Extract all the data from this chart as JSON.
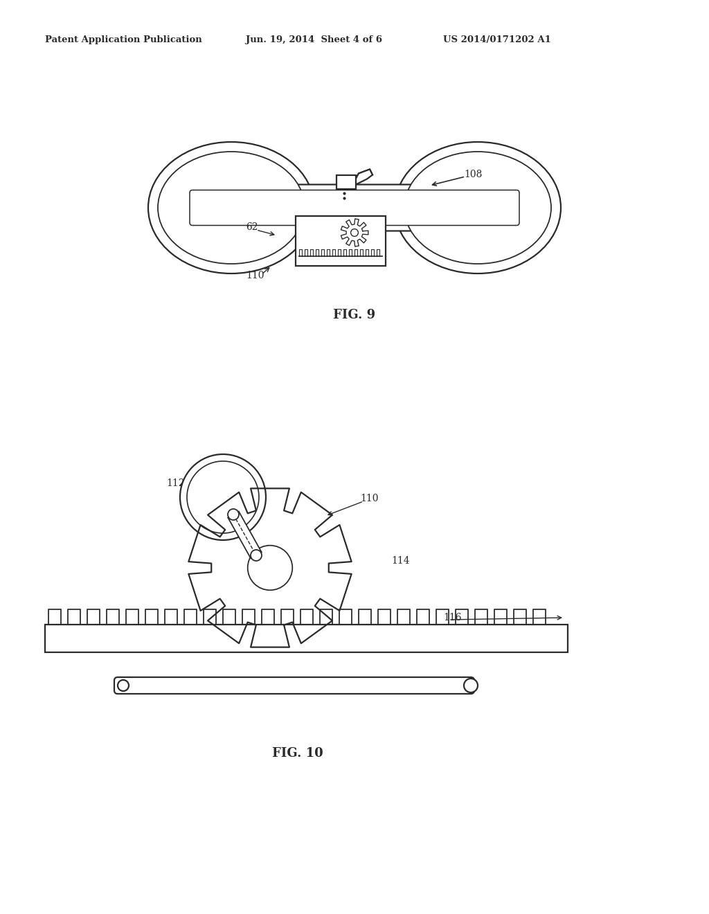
{
  "bg_color": "#ffffff",
  "line_color": "#2a2a2a",
  "header_left": "Patent Application Publication",
  "header_mid": "Jun. 19, 2014  Sheet 4 of 6",
  "header_right": "US 2014/0171202 A1",
  "fig9_label": "FIG. 9",
  "fig10_label": "FIG. 10"
}
